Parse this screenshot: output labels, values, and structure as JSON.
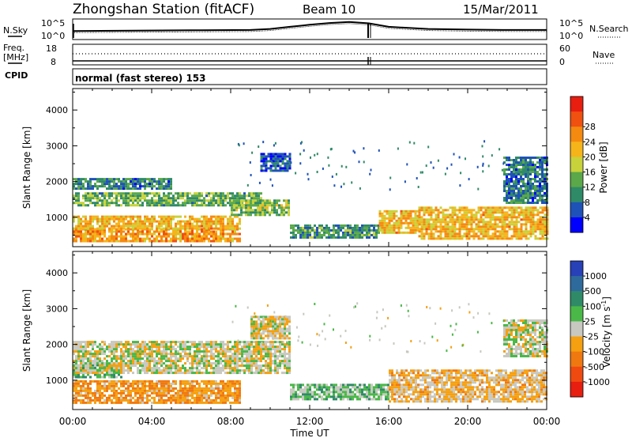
{
  "header": {
    "station": "Zhongshan Station (fitACF)",
    "beam": "Beam 10",
    "date": "15/Mar/2011"
  },
  "noise_panel": {
    "left_label": "N.Sky",
    "left_ticks": [
      "10^5",
      "10^0"
    ],
    "right_label": "N.Search",
    "right_ticks": [
      "10^5",
      "10^0"
    ]
  },
  "freq_panel": {
    "left_label_1": "Freq.",
    "left_label_2": "[MHz]",
    "left_ticks": [
      "18",
      "8"
    ],
    "right_label": "Nave",
    "right_ticks": [
      "60",
      "0"
    ]
  },
  "cpid": {
    "label": "CPID",
    "value": "normal (fast stereo) 153"
  },
  "x_ticks": [
    "00:00",
    "04:00",
    "08:00",
    "12:00",
    "16:00",
    "20:00",
    "00:00"
  ],
  "x_title": "Time UT",
  "y_title": "Slant Range [km]",
  "y_ticks": [
    "1000",
    "2000",
    "3000",
    "4000"
  ],
  "power_colorbar": {
    "title": "Power [dB]",
    "ticks": [
      "4",
      "8",
      "12",
      "16",
      "20",
      "24",
      "28"
    ],
    "colors": [
      "#0000ff",
      "#1f52b8",
      "#2f8a68",
      "#5aa84a",
      "#c8d23a",
      "#f5b41a",
      "#f58a10",
      "#f05010",
      "#e81e10"
    ]
  },
  "velocity_colorbar": {
    "title": "Velocity [m s",
    "title_sup": "-1",
    "title_end": "]",
    "ticks": [
      "1000",
      "500",
      "100",
      "25",
      "-25",
      "-100",
      "-500",
      "-1000"
    ],
    "colors": [
      "#2840b8",
      "#2f6a9c",
      "#2f8a68",
      "#4ab848",
      "#c8c8c0",
      "#f5a010",
      "#f07810",
      "#f04a10",
      "#e81e10"
    ]
  },
  "chart_data": [
    {
      "type": "line",
      "title": "Zhongshan Station (fitACF) Beam 10 15/Mar/2011",
      "xlabel": "",
      "ylabel": "N.Sky / N.Search",
      "xlim": [
        0,
        24
      ],
      "series": [
        {
          "name": "N.Sky",
          "x": [
            0,
            3,
            6,
            9,
            10,
            11,
            12,
            13,
            14,
            15,
            16,
            18,
            20,
            22,
            24
          ],
          "values": [
            2,
            2.1,
            2.2,
            2.3,
            2.6,
            3.2,
            3.8,
            4.3,
            4.6,
            4.2,
            3.2,
            2.6,
            2.4,
            2.3,
            2.3
          ]
        }
      ]
    },
    {
      "type": "line",
      "title": "",
      "xlabel": "",
      "ylabel": "Freq. [MHz] / Nave",
      "xlim": [
        0,
        24
      ],
      "series": [
        {
          "name": "Freq.",
          "x": [
            0,
            24
          ],
          "values": [
            10,
            10
          ]
        },
        {
          "name": "Nave",
          "x": [
            0,
            24
          ],
          "values": [
            32,
            32
          ]
        }
      ]
    },
    {
      "type": "heatmap",
      "title": "",
      "xlabel": "Time UT",
      "ylabel": "Slant Range [km]",
      "xlim": [
        0,
        24
      ],
      "ylim": [
        180,
        4600
      ],
      "colorbar": "Power [dB]",
      "clim": [
        0,
        32
      ],
      "bands": [
        {
          "t0": 0.0,
          "t1": 8.5,
          "r0": 350,
          "r1": 700,
          "v": 22
        },
        {
          "t0": 0.0,
          "t1": 8.5,
          "r0": 700,
          "r1": 1050,
          "v": 20
        },
        {
          "t0": 0.0,
          "t1": 9.5,
          "r0": 1350,
          "r1": 1700,
          "v": 12
        },
        {
          "t0": 0.0,
          "t1": 5.0,
          "r0": 1800,
          "r1": 2100,
          "v": 8
        },
        {
          "t0": 8.0,
          "t1": 11.0,
          "r0": 1100,
          "r1": 1500,
          "v": 14
        },
        {
          "t0": 9.5,
          "t1": 11.0,
          "r0": 2300,
          "r1": 2800,
          "v": 6
        },
        {
          "t0": 11.0,
          "t1": 15.5,
          "r0": 450,
          "r1": 800,
          "v": 10
        },
        {
          "t0": 15.5,
          "t1": 17.5,
          "r0": 550,
          "r1": 1200,
          "v": 20
        },
        {
          "t0": 17.5,
          "t1": 24.0,
          "r0": 400,
          "r1": 1300,
          "v": 20
        },
        {
          "t0": 21.8,
          "t1": 24.0,
          "r0": 1400,
          "r1": 2700,
          "v": 8
        }
      ]
    },
    {
      "type": "heatmap",
      "title": "",
      "xlabel": "Time UT",
      "ylabel": "Slant Range [km]",
      "xlim": [
        0,
        24
      ],
      "ylim": [
        180,
        4600
      ],
      "colorbar": "Velocity [m s-1]",
      "clim": [
        -1000,
        1000
      ],
      "bands": [
        {
          "t0": 0.0,
          "t1": 8.5,
          "r0": 400,
          "r1": 1000,
          "v": -300
        },
        {
          "t0": 0.0,
          "t1": 2.5,
          "r0": 1100,
          "r1": 1450,
          "v": 300
        },
        {
          "t0": 0.0,
          "t1": 11.0,
          "r0": 1200,
          "r1": 2100,
          "v": 0
        },
        {
          "t0": 9.0,
          "t1": 11.0,
          "r0": 2200,
          "r1": 2800,
          "v": -80
        },
        {
          "t0": 11.0,
          "t1": 16.0,
          "r0": 450,
          "r1": 900,
          "v": 200
        },
        {
          "t0": 16.0,
          "t1": 24.0,
          "r0": 400,
          "r1": 1300,
          "v": -150
        },
        {
          "t0": 21.8,
          "t1": 24.0,
          "r0": 1700,
          "r1": 2700,
          "v": 0
        }
      ]
    }
  ]
}
